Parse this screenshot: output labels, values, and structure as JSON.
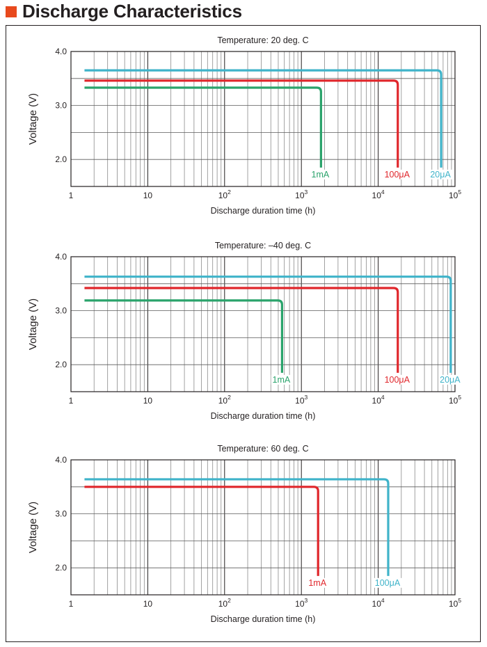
{
  "header": {
    "title": "Discharge Characteristics"
  },
  "colors": {
    "accent": "#e8491d",
    "1mA_green": "#2aa36b",
    "100uA_red": "#e0262b",
    "20uA_cyan": "#3fb3c9"
  },
  "chart_data": [
    {
      "type": "line",
      "title": "Temperature: 20 deg. C",
      "xlabel": "Discharge duration time (h)",
      "ylabel": "Voltage (V)",
      "xscale": "log",
      "xlim": [
        1,
        100000
      ],
      "ylim": [
        1.5,
        4.0
      ],
      "x_tick_labels": [
        "1",
        "10",
        "10",
        "10",
        "10",
        "10"
      ],
      "x_tick_exponents": [
        "",
        "",
        "2",
        "3",
        "4",
        "5"
      ],
      "y_tick_labels": [
        "4.0",
        "3.0",
        "2.0"
      ],
      "grid": true,
      "series": [
        {
          "name": "20μA",
          "color": "#3fb3c9",
          "x": [
            1.5,
            66000
          ],
          "y": [
            3.65,
            3.65
          ],
          "end_x": 66000,
          "end_y": 1.85
        },
        {
          "name": "100μA",
          "color": "#e0262b",
          "x": [
            1.5,
            18000
          ],
          "y": [
            3.46,
            3.46
          ],
          "end_x": 18000,
          "end_y": 1.85
        },
        {
          "name": "1mA",
          "color": "#2aa36b",
          "x": [
            1.5,
            1800
          ],
          "y": [
            3.33,
            3.33
          ],
          "end_x": 1800,
          "end_y": 1.85
        }
      ]
    },
    {
      "type": "line",
      "title": "Temperature: –40 deg. C",
      "xlabel": "Discharge duration time (h)",
      "ylabel": "Voltage (V)",
      "xscale": "log",
      "xlim": [
        1,
        100000
      ],
      "ylim": [
        1.5,
        4.0
      ],
      "x_tick_labels": [
        "1",
        "10",
        "10",
        "10",
        "10",
        "10"
      ],
      "x_tick_exponents": [
        "",
        "",
        "2",
        "3",
        "4",
        "5"
      ],
      "y_tick_labels": [
        "4.0",
        "3.0",
        "2.0"
      ],
      "grid": true,
      "series": [
        {
          "name": "20μA",
          "color": "#3fb3c9",
          "x": [
            1.5,
            88000
          ],
          "y": [
            3.63,
            3.63
          ],
          "end_x": 88000,
          "end_y": 1.85
        },
        {
          "name": "100μA",
          "color": "#e0262b",
          "x": [
            1.5,
            18000
          ],
          "y": [
            3.42,
            3.42
          ],
          "end_x": 18000,
          "end_y": 1.85
        },
        {
          "name": "1mA",
          "color": "#2aa36b",
          "x": [
            1.5,
            560
          ],
          "y": [
            3.19,
            3.19
          ],
          "end_x": 560,
          "end_y": 1.85
        }
      ]
    },
    {
      "type": "line",
      "title": "Temperature: 60 deg. C",
      "xlabel": "Discharge duration time (h)",
      "ylabel": "Voltage (V)",
      "xscale": "log",
      "xlim": [
        1,
        100000
      ],
      "ylim": [
        1.5,
        4.0
      ],
      "x_tick_labels": [
        "1",
        "10",
        "10",
        "10",
        "10",
        "10"
      ],
      "x_tick_exponents": [
        "",
        "",
        "2",
        "3",
        "4",
        "5"
      ],
      "y_tick_labels": [
        "4.0",
        "3.0",
        "2.0"
      ],
      "grid": true,
      "series": [
        {
          "name": "100μA",
          "color": "#3fb3c9",
          "x": [
            1.5,
            13500
          ],
          "y": [
            3.64,
            3.64
          ],
          "end_x": 13500,
          "end_y": 1.85
        },
        {
          "name": "1mA",
          "color": "#e0262b",
          "x": [
            1.5,
            1650
          ],
          "y": [
            3.5,
            3.5
          ],
          "end_x": 1650,
          "end_y": 1.85
        }
      ]
    }
  ]
}
